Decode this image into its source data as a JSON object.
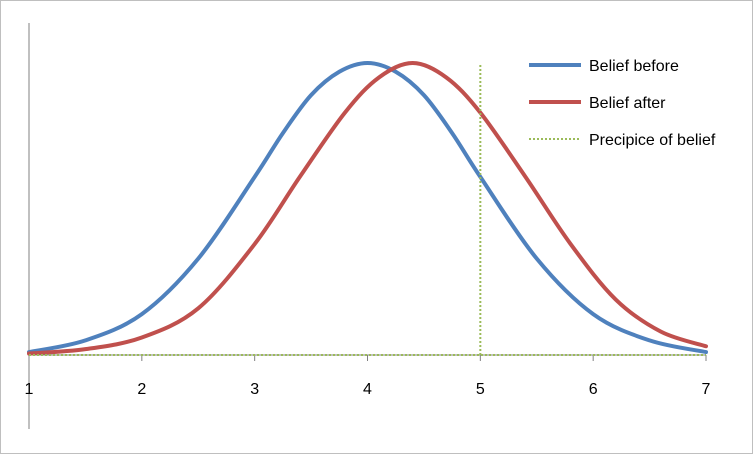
{
  "chart_data": {
    "type": "line",
    "title": "",
    "xlabel": "",
    "ylabel": "",
    "xlim": [
      1,
      7
    ],
    "ylim": [
      0,
      1
    ],
    "grid": false,
    "legend_position": "top-right",
    "x_ticks": [
      "1",
      "2",
      "3",
      "4",
      "5",
      "6",
      "7"
    ],
    "series": [
      {
        "name": "Belief before",
        "color": "#4f81bd",
        "style": "solid",
        "x": [
          1,
          1.5,
          2,
          2.5,
          3,
          3.25,
          3.5,
          3.75,
          4,
          4.25,
          4.5,
          4.75,
          5,
          5.5,
          6,
          6.5,
          7
        ],
        "y": [
          0.01,
          0.05,
          0.14,
          0.33,
          0.61,
          0.76,
          0.89,
          0.97,
          1.0,
          0.97,
          0.89,
          0.76,
          0.61,
          0.33,
          0.14,
          0.05,
          0.01
        ]
      },
      {
        "name": "Belief after",
        "color": "#c0504d",
        "style": "solid",
        "x": [
          1,
          1.5,
          2,
          2.5,
          3,
          3.4,
          3.8,
          4.1,
          4.4,
          4.7,
          5,
          5.4,
          5.8,
          6.2,
          6.6,
          7
        ],
        "y": [
          0.005,
          0.02,
          0.06,
          0.16,
          0.38,
          0.61,
          0.83,
          0.95,
          1.0,
          0.95,
          0.83,
          0.61,
          0.38,
          0.19,
          0.08,
          0.03
        ]
      },
      {
        "name": "Precipice of belief",
        "color": "#9bbb59",
        "style": "dotted",
        "x": [
          5,
          5
        ],
        "y": [
          0,
          1
        ]
      }
    ]
  }
}
